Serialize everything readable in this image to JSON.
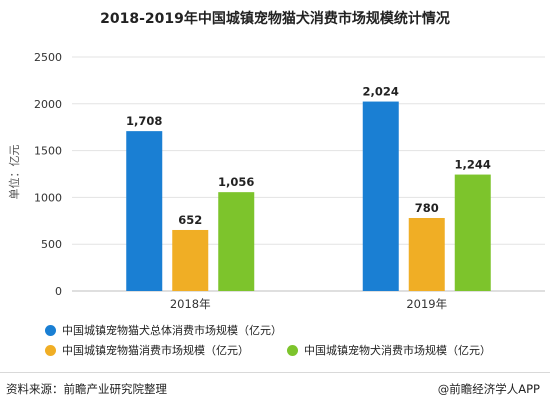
{
  "title": "2018-2019年中国城镇宠物猫犬消费市场规模统计情况",
  "source": "资料来源：前瞻产业研究院整理",
  "brand": "@前瞻经济学人APP",
  "chart_data": {
    "type": "bar",
    "title": "2018-2019年中国城镇宠物猫犬消费市场规模统计情况",
    "ylabel": "单位：亿元",
    "categories": [
      "2018年",
      "2019年"
    ],
    "ylim": [
      0,
      2500
    ],
    "yticks": [
      0,
      500,
      1000,
      1500,
      2000,
      2500
    ],
    "ytick_labels": [
      "0",
      "500",
      "1000",
      "1500",
      "2000",
      "2500"
    ],
    "grid": true,
    "legend_position": "bottom",
    "series": [
      {
        "name": "中国城镇宠物猫犬总体消费市场规模（亿元）",
        "values": [
          1708,
          2024
        ],
        "labels": [
          "1,708",
          "2,024"
        ],
        "color": "#1a7fd3"
      },
      {
        "name": "中国城镇宠物猫消费市场规模（亿元）",
        "values": [
          652,
          780
        ],
        "labels": [
          "652",
          "780"
        ],
        "color": "#f0ae25"
      },
      {
        "name": "中国城镇宠物犬消费市场规模（亿元）",
        "values": [
          1056,
          1244
        ],
        "labels": [
          "1,056",
          "1,244"
        ],
        "color": "#7dc42c"
      }
    ]
  }
}
